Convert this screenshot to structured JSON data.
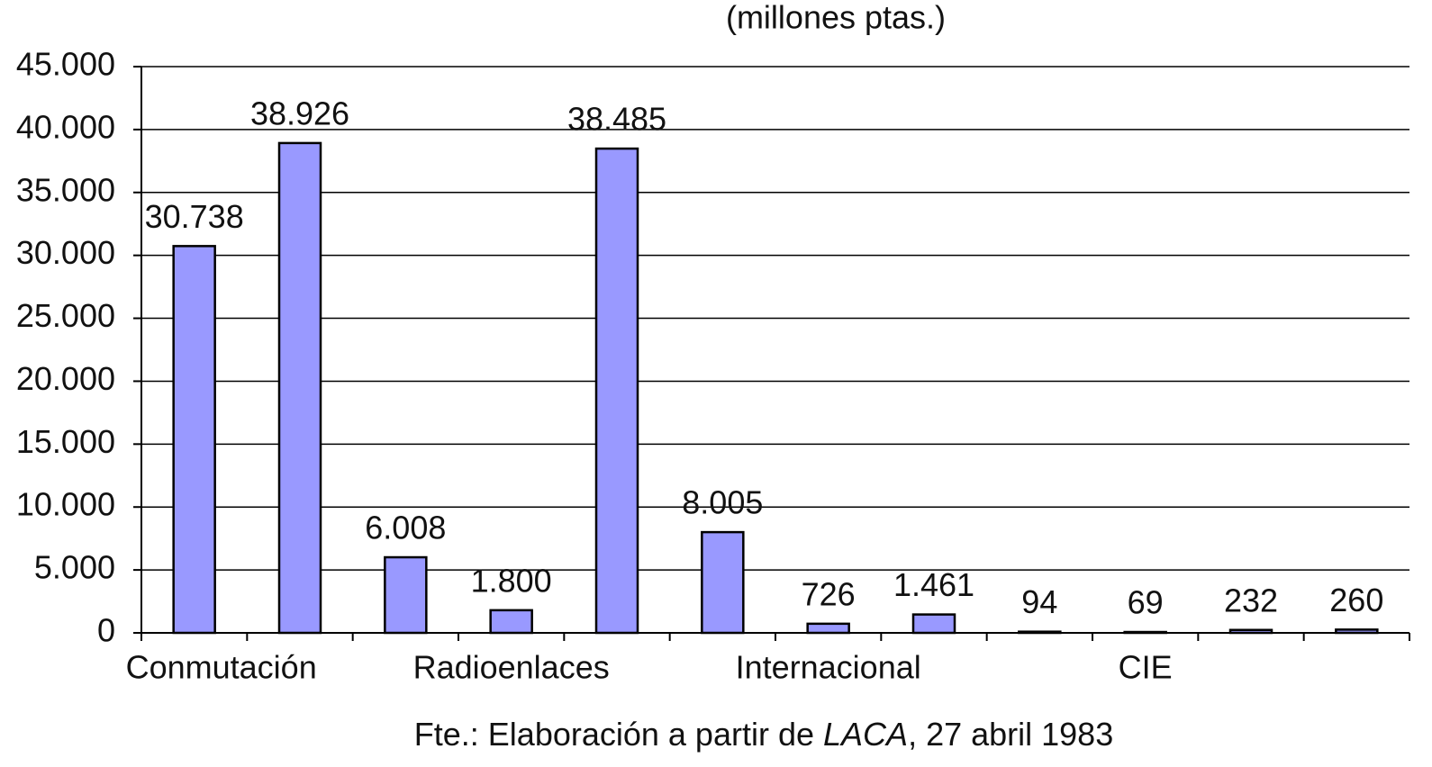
{
  "chart_data": {
    "type": "bar",
    "title": "(millones ptas.)",
    "categories": [
      "Conmutación",
      null,
      null,
      "Radioenlaces",
      null,
      null,
      "Internacional",
      null,
      null,
      "CIE",
      null,
      null
    ],
    "values": [
      30738,
      38926,
      6008,
      1800,
      38485,
      8005,
      726,
      1461,
      94,
      69,
      232,
      260
    ],
    "value_labels": [
      "30.738",
      "38.926",
      "6.008",
      "1.800",
      "38.485",
      "8.005",
      "726",
      "1.461",
      "94",
      "69",
      "232",
      "260"
    ],
    "color": "#9999ff",
    "ylim": [
      0,
      45000
    ],
    "yticks": [
      0,
      {
        "value": 5000,
        "label": "5.000"
      },
      {
        "value": 10000,
        "label": "10.000"
      },
      {
        "value": 15000,
        "label": "15.000"
      },
      {
        "value": 20000,
        "label": "20.000"
      },
      {
        "value": 25000,
        "label": "25.000"
      },
      {
        "value": 30000,
        "label": "30.000"
      },
      {
        "value": 35000,
        "label": "35.000"
      },
      {
        "value": 40000,
        "label": "40.000"
      },
      {
        "value": 45000,
        "label": "45.000"
      }
    ],
    "grid": true,
    "source": {
      "prefix": "Fte.: Elaboración a partir de ",
      "italic": "LACA",
      "suffix": ", 27 abril 1983"
    }
  }
}
